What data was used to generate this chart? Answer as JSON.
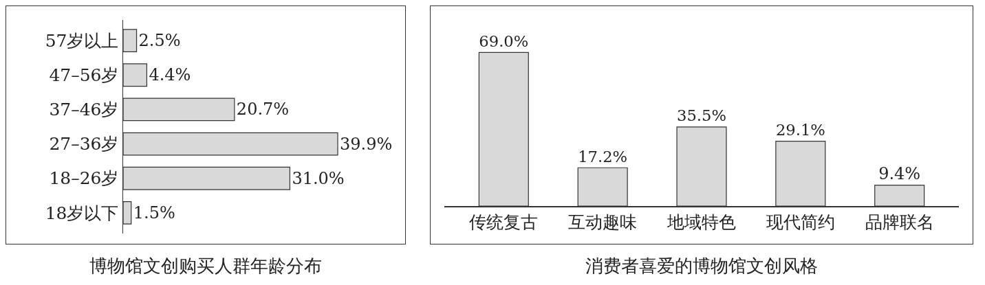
{
  "chart_data": [
    {
      "type": "bar",
      "orientation": "horizontal",
      "title": "博物馆文创购买人群年龄分布",
      "categories": [
        "57岁以上",
        "47–56岁",
        "37–46岁",
        "27–36岁",
        "18–26岁",
        "18岁以下"
      ],
      "values": [
        2.5,
        4.4,
        20.7,
        39.9,
        31.0,
        1.5
      ],
      "value_labels": [
        "2.5%",
        "4.4%",
        "20.7%",
        "39.9%",
        "31.0%",
        "1.5%"
      ],
      "color": "#d9d9d9",
      "tick_labels": "y"
    },
    {
      "type": "bar",
      "title": "消费者喜爱的博物馆文创风格",
      "categories": [
        "传统复古",
        "互动趣味",
        "地域特色",
        "现代简约",
        "品牌联名"
      ],
      "values": [
        69.0,
        17.2,
        35.5,
        29.1,
        9.4
      ],
      "value_labels": [
        "69.0%",
        "17.2%",
        "35.5%",
        "29.1%",
        "9.4%"
      ],
      "color": "#d9d9d9",
      "tick_labels": "x"
    }
  ]
}
